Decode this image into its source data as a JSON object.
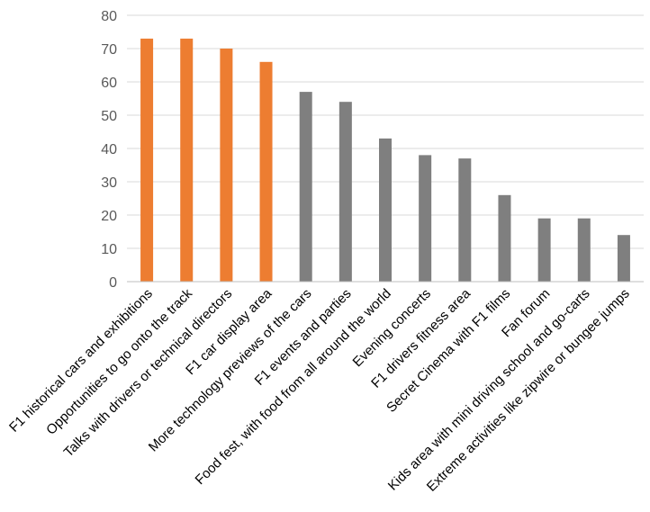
{
  "chart_data": {
    "type": "bar",
    "title": "",
    "xlabel": "",
    "ylabel": "",
    "ylim": [
      0,
      80
    ],
    "yticks": [
      0,
      10,
      20,
      30,
      40,
      50,
      60,
      70,
      80
    ],
    "grid": true,
    "legend": "none",
    "categories": [
      "F1 historical cars and exhibitions",
      "Opportunities to go onto the track",
      "Talks with drivers or technical directors",
      "F1 car display area",
      "More technology previews of the cars",
      "F1 events and parties",
      "Food fest, with food from all around the world",
      "Evening concerts",
      "F1 drivers fitness area",
      "Secret Cinema with F1 films",
      "Fan forum",
      "Kids area with mini driving school and go-carts",
      "Extreme activities like zipwire or bungee jumps"
    ],
    "values": [
      73,
      73,
      70,
      66,
      57,
      54,
      43,
      38,
      37,
      26,
      19,
      19,
      14
    ],
    "bar_colors": [
      "#ED7D31",
      "#ED7D31",
      "#ED7D31",
      "#ED7D31",
      "#7F7F7F",
      "#7F7F7F",
      "#7F7F7F",
      "#7F7F7F",
      "#7F7F7F",
      "#7F7F7F",
      "#7F7F7F",
      "#7F7F7F",
      "#7F7F7F"
    ],
    "colors": {
      "highlight": "#ED7D31",
      "default": "#7F7F7F",
      "grid": "#D9D9D9",
      "axis": "#BFBFBF",
      "tick_text": "#595959",
      "category_text": "#000000"
    }
  }
}
